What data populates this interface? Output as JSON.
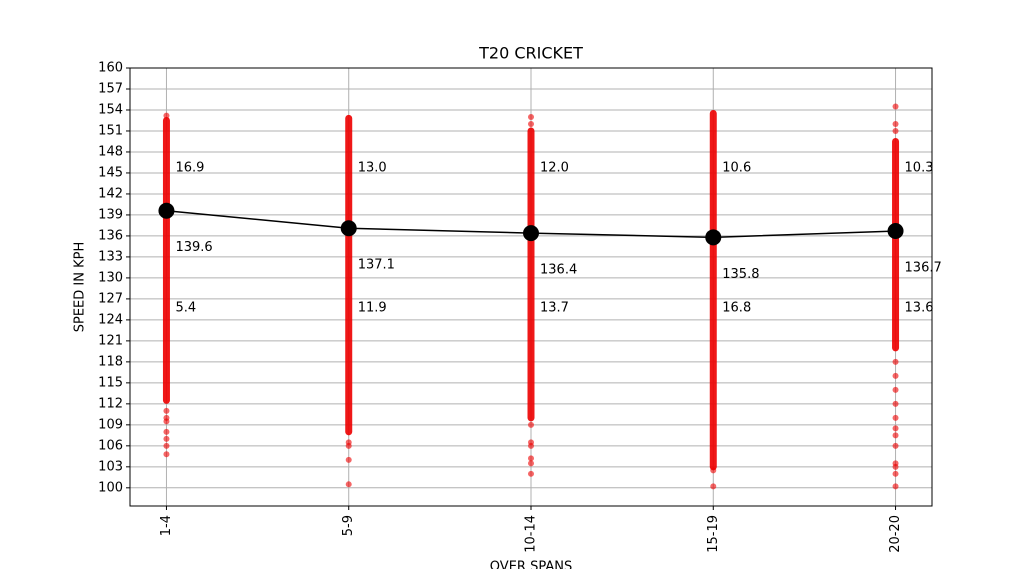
{
  "chart_data": {
    "type": "strip",
    "title": "T20 CRICKET",
    "x_label": "OVER SPANS",
    "y_label": "SPEED IN KPH",
    "categories": [
      "1-4",
      "5-9",
      "10-14",
      "15-19",
      "20-20"
    ],
    "xlim": [
      -0.2,
      4.2
    ],
    "ylim": [
      97.4,
      160
    ],
    "yticks": [
      100,
      103,
      106,
      109,
      112,
      115,
      118,
      121,
      124,
      127,
      130,
      133,
      136,
      139,
      142,
      145,
      148,
      151,
      154,
      157,
      160
    ],
    "grid": true,
    "strip_color": "#ee0000",
    "strips": [
      {
        "range": [
          112.5,
          152.5
        ],
        "points": [
          153.2,
          111,
          110,
          109.5,
          108,
          107,
          106,
          104.8
        ]
      },
      {
        "range": [
          108,
          152.8
        ],
        "points": [
          106.5,
          106,
          104,
          100.5
        ]
      },
      {
        "range": [
          110,
          151
        ],
        "points": [
          153,
          152,
          109,
          106.5,
          106,
          104.2,
          103.5,
          102
        ]
      },
      {
        "range": [
          103,
          153.5
        ],
        "points": [
          102.5,
          100.2
        ]
      },
      {
        "range": [
          120,
          149.5
        ],
        "points": [
          154.5,
          152,
          151,
          118,
          116,
          114,
          112,
          110,
          108.5,
          107.5,
          106,
          103.5,
          103,
          102,
          100.2
        ]
      }
    ],
    "series": [
      {
        "color": "#000000",
        "values": [
          139.6,
          137.1,
          136.4,
          135.8,
          136.7
        ]
      }
    ],
    "annotations": [
      {
        "upper": "16.9",
        "lower": "5.4"
      },
      {
        "upper": "13.0",
        "lower": "11.9"
      },
      {
        "upper": "12.0",
        "lower": "13.7"
      },
      {
        "upper": "10.6",
        "lower": "16.8"
      },
      {
        "upper": "10.3",
        "lower": "13.6"
      }
    ]
  }
}
